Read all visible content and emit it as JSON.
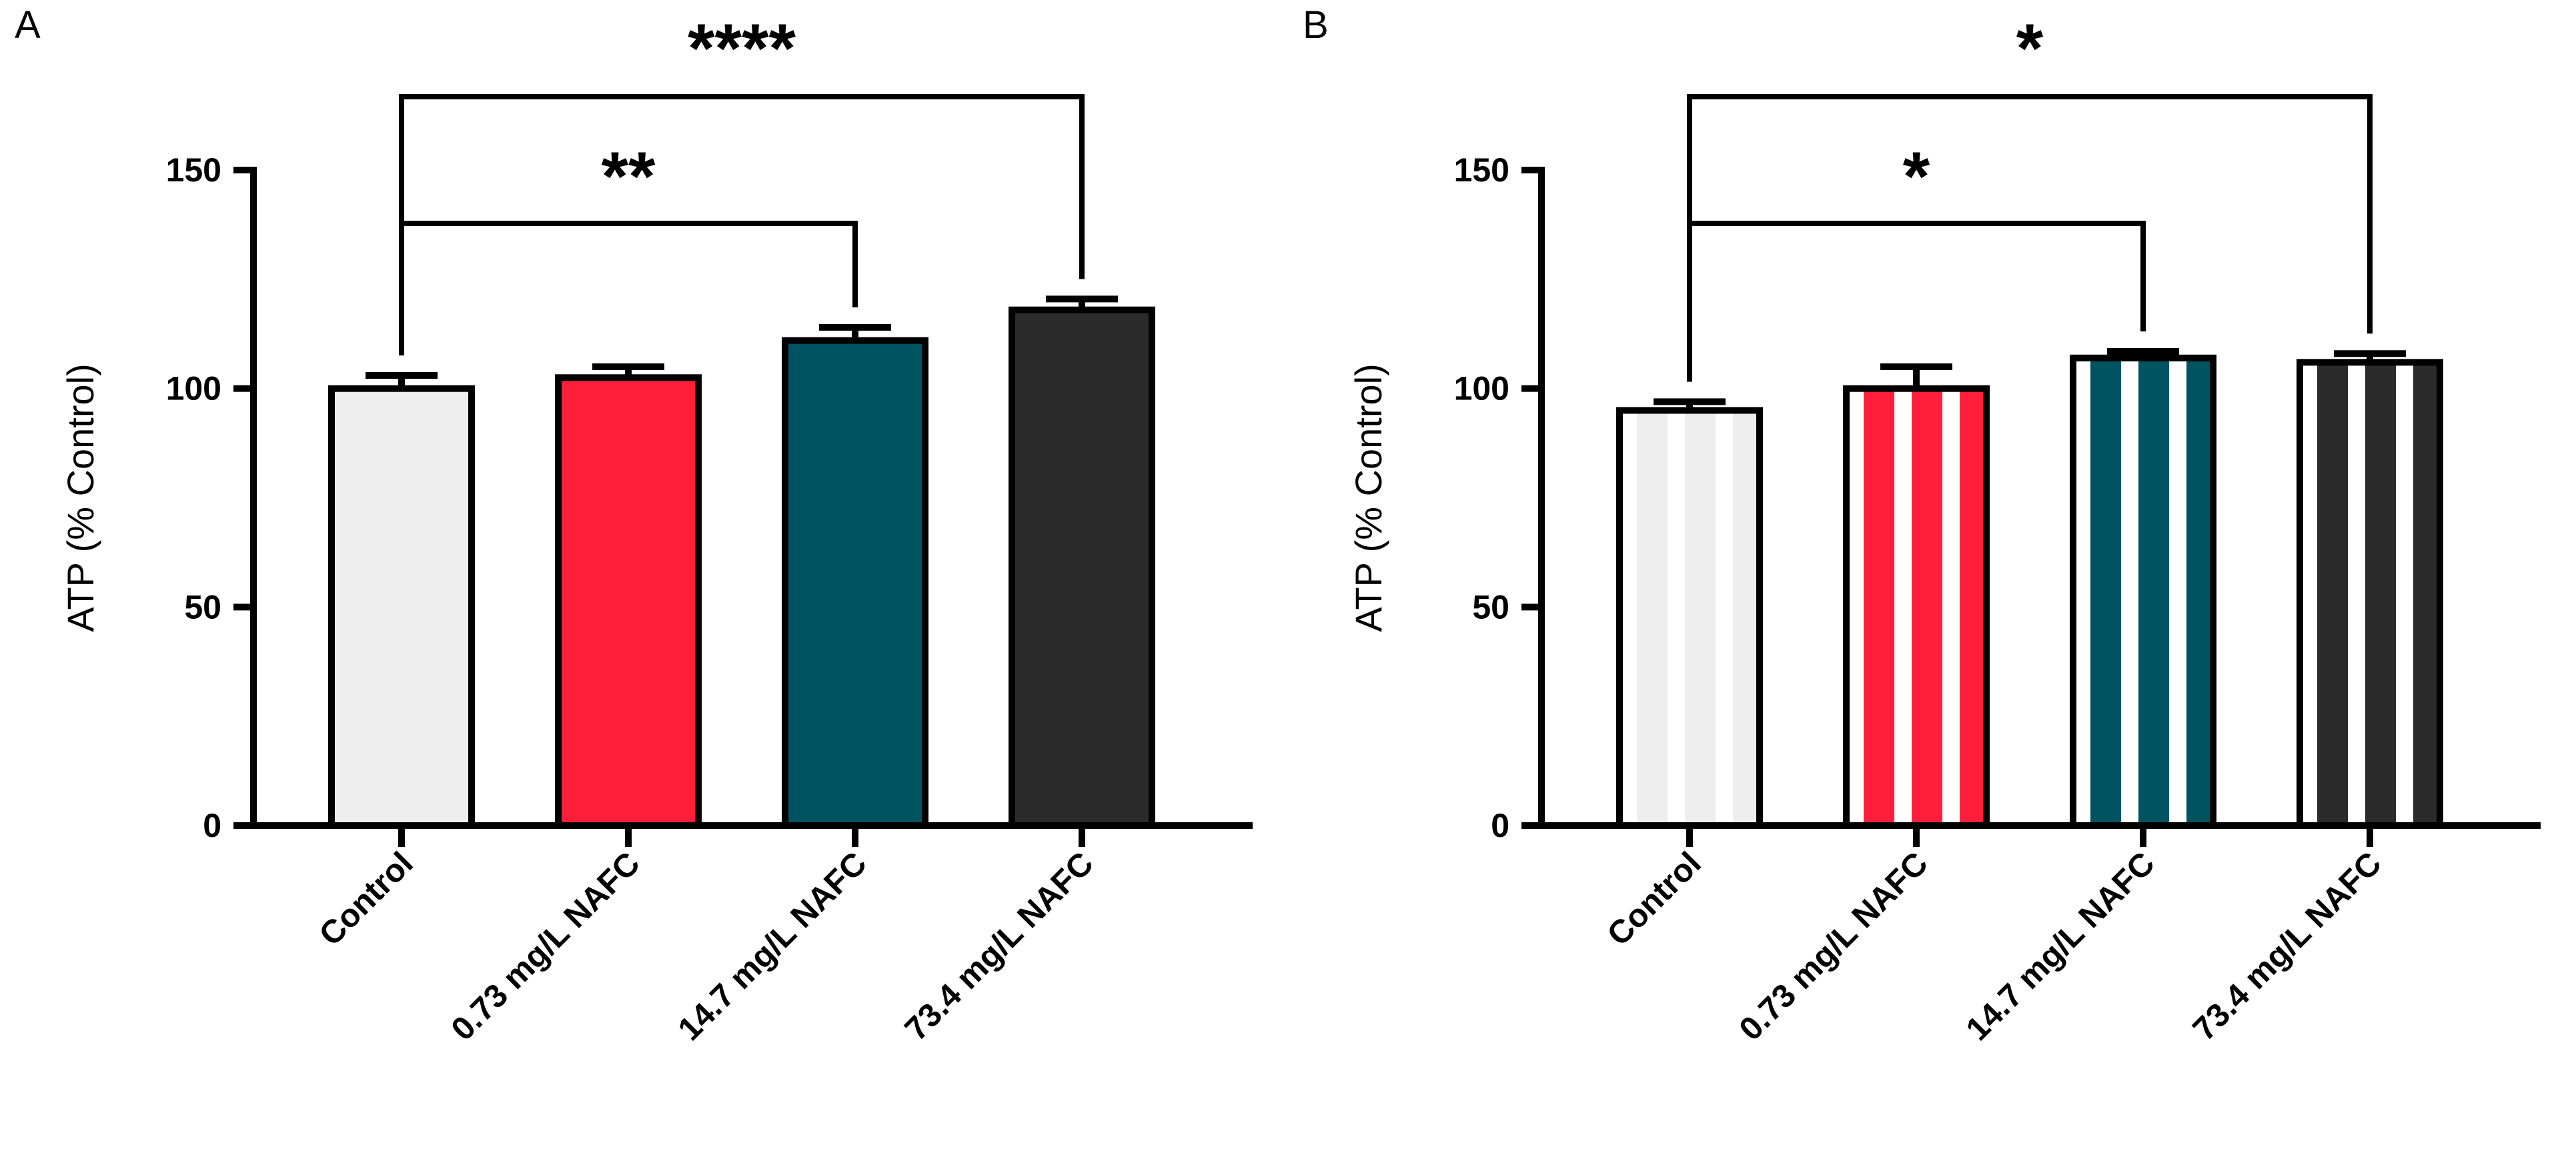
{
  "chart_data": [
    {
      "panel": "A",
      "type": "bar",
      "pattern": "solid",
      "categories": [
        "Control",
        "0.73 mg/L NAFC",
        "14.7 mg/L NAFC",
        "73.4 mg/L NAFC"
      ],
      "values": [
        100,
        102.5,
        111,
        118
      ],
      "errors": [
        3,
        2.5,
        3,
        2.5
      ],
      "colors": [
        "#eeeeee",
        "#ff1f3a",
        "#005461",
        "#2b2b2b"
      ],
      "ylabel": "ATP (% Control)",
      "ylim": [
        0,
        150
      ],
      "yticks": [
        0,
        50,
        100,
        150
      ],
      "ytick_labels": [
        "0",
        "50",
        "100",
        "150"
      ],
      "significance": [
        {
          "from": 0,
          "to": 2,
          "label": "**"
        },
        {
          "from": 0,
          "to": 3,
          "label": "****"
        }
      ]
    },
    {
      "panel": "B",
      "type": "bar",
      "pattern": "striped",
      "categories": [
        "Control",
        "0.73 mg/L NAFC",
        "14.7 mg/L NAFC",
        "73.4 mg/L NAFC"
      ],
      "values": [
        95,
        100,
        107,
        106
      ],
      "errors": [
        2,
        5,
        1.5,
        2
      ],
      "colors": [
        "#eeeeee",
        "#ff1f3a",
        "#005461",
        "#2b2b2b"
      ],
      "ylabel": "ATP (% Control)",
      "ylim": [
        0,
        150
      ],
      "yticks": [
        0,
        50,
        100,
        150
      ],
      "ytick_labels": [
        "0",
        "50",
        "100",
        "150"
      ],
      "significance": [
        {
          "from": 0,
          "to": 2,
          "label": "*"
        },
        {
          "from": 0,
          "to": 3,
          "label": "*"
        }
      ]
    }
  ]
}
